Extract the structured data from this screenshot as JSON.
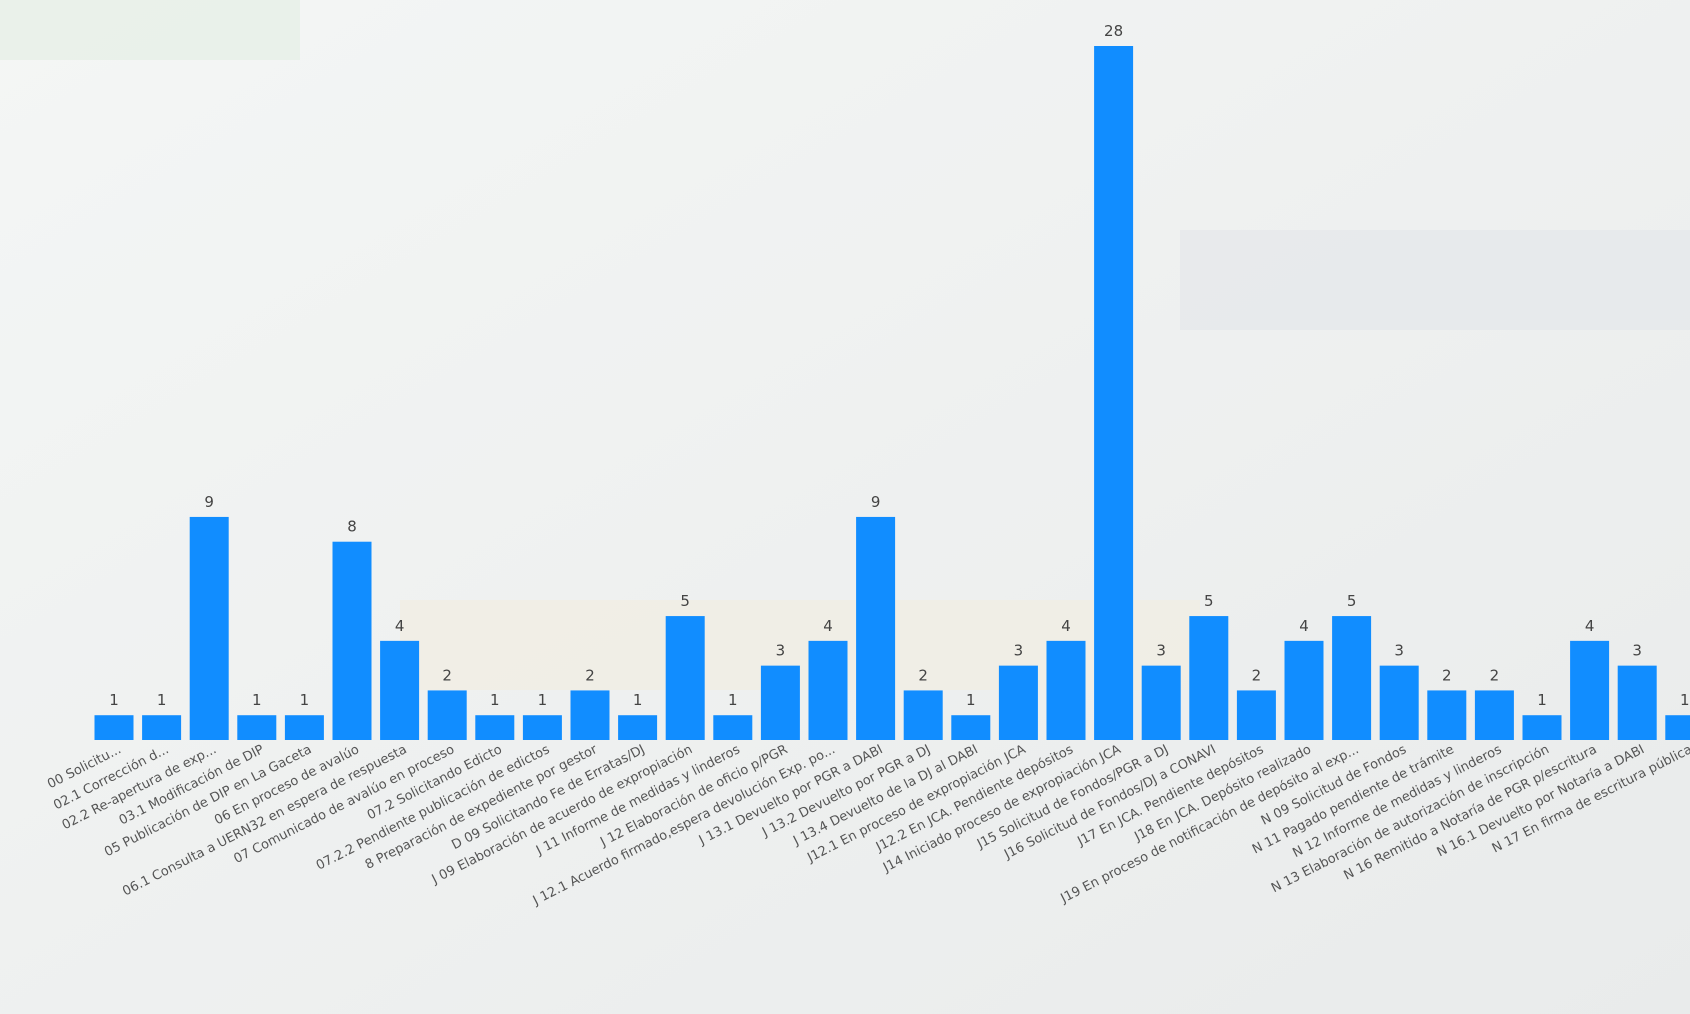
{
  "chart_data": {
    "type": "bar",
    "color": "#118dff",
    "categories": [
      "00 Solicitu...",
      "02.1 Corrección d...",
      "02.2 Re-apertura de exp...",
      "03.1 Modificación de DIP",
      "05 Publicación de DIP en La Gaceta",
      "06 En proceso de avalúo",
      "06.1 Consulta a UERN32 en espera de respuesta",
      "07 Comunicado de avalúo en proceso",
      "07.2 Solicitando Edicto",
      "07.2.2 Pendiente publicación de edictos",
      "8 Preparación de expediente por gestor",
      "D 09 Solicitando Fe de Erratas/DJ",
      "J 09 Elaboración de acuerdo de expropiación",
      "J 11 Informe de medidas y linderos",
      "J 12 Elaboración de oficio p/PGR",
      "J 12.1 Acuerdo firmado,espera devolución Exp. po...",
      "J 13.1 Devuelto por PGR a DABI",
      "J 13.2 Devuelto por PGR a DJ",
      "J 13.4 Devuelto de la DJ al DABI",
      "J12.1 En proceso de expropiación JCA",
      "J12.2 En JCA. Pendiente depósitos",
      "J14 Iniciado proceso de expropiación JCA",
      "J15 Solicitud de Fondos/PGR a DJ",
      "J16 Solicitud de Fondos/DJ a CONAVI",
      "J17 En JCA. Pendiente depósitos",
      "J18 En JCA. Depósito realizado",
      "J19 En proceso de notificación de depósito al exp...",
      "N 09 Solicitud de Fondos",
      "N 11 Pagado pendiente de trámite",
      "N 12 Informe de medidas y linderos",
      "N 13 Elaboración de autorización de inscripción",
      "N 16 Remitido a Notaría de PGR p/escritura",
      "N 16.1 Devuelto por Notaría a DABI",
      "N 17 En firma de escritura pública"
    ],
    "values": [
      1,
      1,
      9,
      1,
      1,
      8,
      4,
      2,
      1,
      1,
      2,
      1,
      5,
      1,
      3,
      4,
      9,
      2,
      1,
      3,
      4,
      28,
      3,
      5,
      2,
      4,
      5,
      3,
      2,
      2,
      1,
      4,
      3,
      1
    ]
  }
}
